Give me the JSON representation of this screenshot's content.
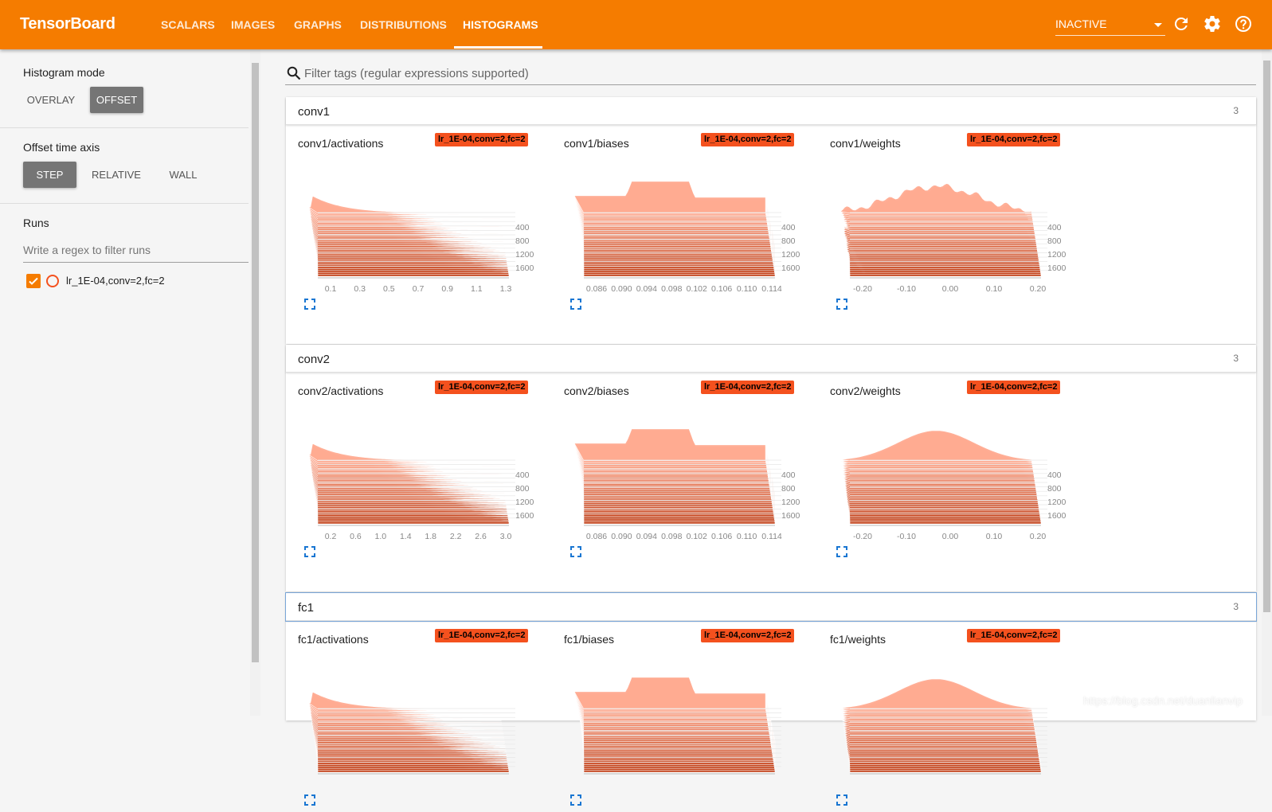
{
  "app": {
    "title": "TensorBoard",
    "tabs": [
      "SCALARS",
      "IMAGES",
      "GRAPHS",
      "DISTRIBUTIONS",
      "HISTOGRAMS"
    ],
    "active_tab": "HISTOGRAMS",
    "status_select": "INACTIVE",
    "brand_color": "#f57c00",
    "icons": [
      "reload-icon",
      "settings-icon",
      "help-icon"
    ]
  },
  "sidebar": {
    "histogram_mode_label": "Histogram mode",
    "histogram_modes": [
      "OVERLAY",
      "OFFSET"
    ],
    "histogram_mode_selected": "OFFSET",
    "offset_axis_label": "Offset time axis",
    "offset_axis_modes": [
      "STEP",
      "RELATIVE",
      "WALL"
    ],
    "offset_axis_selected": "STEP",
    "runs_label": "Runs",
    "runs_filter_placeholder": "Write a regex to filter runs",
    "runs": [
      {
        "name": "lr_1E-04,conv=2,fc=2",
        "checked": true,
        "color": "#f4511e"
      }
    ]
  },
  "main": {
    "filter_placeholder": "Filter tags (regular expressions supported)",
    "categories": [
      {
        "name": "conv1",
        "count": "3",
        "cards": [
          {
            "title": "conv1/activations",
            "run": "lr_1E-04,conv=2,fc=2",
            "shape": "activation",
            "x_ticks": [
              "0.1",
              "0.3",
              "0.5",
              "0.7",
              "0.9",
              "1.1",
              "1.3"
            ],
            "y_ticks": [
              "400",
              "800",
              "1200",
              "1600"
            ]
          },
          {
            "title": "conv1/biases",
            "run": "lr_1E-04,conv=2,fc=2",
            "shape": "bias",
            "x_ticks": [
              "0.086",
              "0.090",
              "0.094",
              "0.098",
              "0.102",
              "0.106",
              "0.110",
              "0.114"
            ],
            "y_ticks": [
              "400",
              "800",
              "1200",
              "1600"
            ]
          },
          {
            "title": "conv1/weights",
            "run": "lr_1E-04,conv=2,fc=2",
            "shape": "weight-jagged",
            "x_ticks": [
              "-0.20",
              "-0.10",
              "0.00",
              "0.10",
              "0.20"
            ],
            "y_ticks": [
              "400",
              "800",
              "1200",
              "1600"
            ]
          }
        ]
      },
      {
        "name": "conv2",
        "count": "3",
        "cards": [
          {
            "title": "conv2/activations",
            "run": "lr_1E-04,conv=2,fc=2",
            "shape": "activation",
            "x_ticks": [
              "0.2",
              "0.6",
              "1.0",
              "1.4",
              "1.8",
              "2.2",
              "2.6",
              "3.0"
            ],
            "y_ticks": [
              "400",
              "800",
              "1200",
              "1600"
            ]
          },
          {
            "title": "conv2/biases",
            "run": "lr_1E-04,conv=2,fc=2",
            "shape": "bias",
            "x_ticks": [
              "0.086",
              "0.090",
              "0.094",
              "0.098",
              "0.102",
              "0.106",
              "0.110",
              "0.114"
            ],
            "y_ticks": [
              "400",
              "800",
              "1200",
              "1600"
            ]
          },
          {
            "title": "conv2/weights",
            "run": "lr_1E-04,conv=2,fc=2",
            "shape": "weight-smooth",
            "x_ticks": [
              "-0.20",
              "-0.10",
              "0.00",
              "0.10",
              "0.20"
            ],
            "y_ticks": [
              "400",
              "800",
              "1200",
              "1600"
            ]
          }
        ]
      },
      {
        "name": "fc1",
        "count": "3",
        "cards": [
          {
            "title": "fc1/activations",
            "run": "lr_1E-04,conv=2,fc=2",
            "shape": "activation",
            "x_ticks": [],
            "y_ticks": []
          },
          {
            "title": "fc1/biases",
            "run": "lr_1E-04,conv=2,fc=2",
            "shape": "bias",
            "x_ticks": [],
            "y_ticks": []
          },
          {
            "title": "fc1/weights",
            "run": "lr_1E-04,conv=2,fc=2",
            "shape": "weight-smooth",
            "x_ticks": [],
            "y_ticks": []
          }
        ]
      }
    ]
  },
  "watermark": "https://blog.csdn.net/duanlianvip"
}
